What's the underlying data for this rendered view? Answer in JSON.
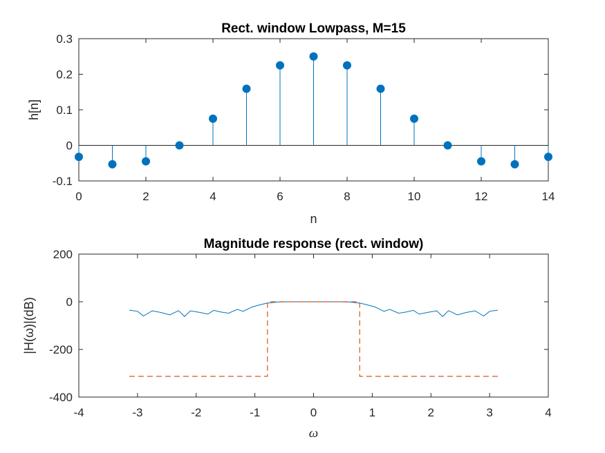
{
  "colors": {
    "stem": "#0072BD",
    "ideal": "#D95319",
    "axis": "#262626",
    "background": "#ffffff"
  },
  "chart_data": [
    {
      "type": "stem",
      "title": "Rect. window Lowpass, M=15",
      "xlabel": "n",
      "ylabel": "h[n]",
      "xlim": [
        0,
        14
      ],
      "ylim": [
        -0.1,
        0.3
      ],
      "xticks": [
        0,
        2,
        4,
        6,
        8,
        10,
        12,
        14
      ],
      "xtick_labels": [
        "0",
        "2",
        "4",
        "6",
        "8",
        "10",
        "12",
        "14"
      ],
      "yticks": [
        -0.1,
        0,
        0.1,
        0.2,
        0.3
      ],
      "ytick_labels": [
        "-0.1",
        "0",
        "0.1",
        "0.2",
        "0.3"
      ],
      "baseline": 0,
      "grid": false,
      "x": [
        0,
        1,
        2,
        3,
        4,
        5,
        6,
        7,
        8,
        9,
        10,
        11,
        12,
        13,
        14
      ],
      "y": [
        -0.0322,
        -0.0531,
        -0.045,
        0.0,
        0.075,
        0.1592,
        0.2251,
        0.25,
        0.2251,
        0.1592,
        0.075,
        0.0,
        -0.045,
        -0.0531,
        -0.0322
      ]
    },
    {
      "type": "line",
      "title": "Magnitude response (rect. window)",
      "xlabel": "ω",
      "ylabel": "|H(ω)|(dB)",
      "xlim": [
        -4,
        4
      ],
      "ylim": [
        -400,
        200
      ],
      "xticks": [
        -4,
        -3,
        -2,
        -1,
        0,
        1,
        2,
        3,
        4
      ],
      "xtick_labels": [
        "-4",
        "-3",
        "-2",
        "-1",
        "0",
        "1",
        "2",
        "3",
        "4"
      ],
      "yticks": [
        -400,
        -200,
        0,
        200
      ],
      "ytick_labels": [
        "-400",
        "-200",
        "0",
        "200"
      ],
      "grid": false,
      "series": [
        {
          "style": "solid",
          "color": "#0072BD",
          "description_values": "magnitude in dB of the 15-tap filter over ω in [-π, π]",
          "x": [
            -3.1416,
            -3.0,
            -2.9,
            -2.75,
            -2.6,
            -2.45,
            -2.3,
            -2.2,
            -2.1,
            -1.95,
            -1.8,
            -1.7,
            -1.6,
            -1.45,
            -1.3,
            -1.2,
            -1.05,
            -0.9,
            -0.8,
            -0.6,
            -0.4,
            -0.2,
            0.0,
            0.2,
            0.4,
            0.6,
            0.8,
            0.9,
            1.05,
            1.2,
            1.3,
            1.45,
            1.6,
            1.7,
            1.8,
            1.95,
            2.1,
            2.2,
            2.3,
            2.45,
            2.6,
            2.75,
            2.9,
            3.0,
            3.1416
          ],
          "y": [
            -35,
            -40,
            -60,
            -38,
            -45,
            -55,
            -37,
            -62,
            -38,
            -44,
            -52,
            -36,
            -42,
            -48,
            -32,
            -40,
            -22,
            -12,
            -6,
            -1,
            0,
            0,
            0,
            0,
            0,
            -1,
            -6,
            -12,
            -22,
            -40,
            -32,
            -48,
            -42,
            -36,
            -52,
            -44,
            -38,
            -62,
            -37,
            -55,
            -45,
            -38,
            -60,
            -40,
            -35
          ]
        },
        {
          "style": "dashed",
          "color": "#D95319",
          "description_values": "ideal lowpass response (dB)",
          "x": [
            -3.1416,
            -0.7854,
            -0.7854,
            0.7854,
            0.7854,
            3.1416
          ],
          "y": [
            -313,
            -313,
            0,
            0,
            -313,
            -313
          ]
        }
      ]
    }
  ]
}
